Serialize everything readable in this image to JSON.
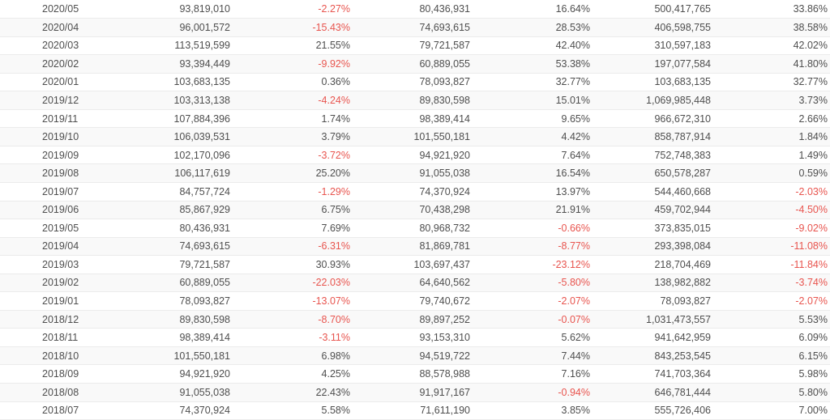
{
  "colors": {
    "negative_value": "#e8544e",
    "text": "#4e4e4e",
    "row_alt_background": "#f9f9f9",
    "row_border": "#ebebeb"
  },
  "table": {
    "rows": [
      [
        "2020/05",
        "93,819,010",
        "-2.27%",
        "80,436,931",
        "16.64%",
        "500,417,765",
        "33.86%"
      ],
      [
        "2020/04",
        "96,001,572",
        "-15.43%",
        "74,693,615",
        "28.53%",
        "406,598,755",
        "38.58%"
      ],
      [
        "2020/03",
        "113,519,599",
        "21.55%",
        "79,721,587",
        "42.40%",
        "310,597,183",
        "42.02%"
      ],
      [
        "2020/02",
        "93,394,449",
        "-9.92%",
        "60,889,055",
        "53.38%",
        "197,077,584",
        "41.80%"
      ],
      [
        "2020/01",
        "103,683,135",
        "0.36%",
        "78,093,827",
        "32.77%",
        "103,683,135",
        "32.77%"
      ],
      [
        "2019/12",
        "103,313,138",
        "-4.24%",
        "89,830,598",
        "15.01%",
        "1,069,985,448",
        "3.73%"
      ],
      [
        "2019/11",
        "107,884,396",
        "1.74%",
        "98,389,414",
        "9.65%",
        "966,672,310",
        "2.66%"
      ],
      [
        "2019/10",
        "106,039,531",
        "3.79%",
        "101,550,181",
        "4.42%",
        "858,787,914",
        "1.84%"
      ],
      [
        "2019/09",
        "102,170,096",
        "-3.72%",
        "94,921,920",
        "7.64%",
        "752,748,383",
        "1.49%"
      ],
      [
        "2019/08",
        "106,117,619",
        "25.20%",
        "91,055,038",
        "16.54%",
        "650,578,287",
        "0.59%"
      ],
      [
        "2019/07",
        "84,757,724",
        "-1.29%",
        "74,370,924",
        "13.97%",
        "544,460,668",
        "-2.03%"
      ],
      [
        "2019/06",
        "85,867,929",
        "6.75%",
        "70,438,298",
        "21.91%",
        "459,702,944",
        "-4.50%"
      ],
      [
        "2019/05",
        "80,436,931",
        "7.69%",
        "80,968,732",
        "-0.66%",
        "373,835,015",
        "-9.02%"
      ],
      [
        "2019/04",
        "74,693,615",
        "-6.31%",
        "81,869,781",
        "-8.77%",
        "293,398,084",
        "-11.08%"
      ],
      [
        "2019/03",
        "79,721,587",
        "30.93%",
        "103,697,437",
        "-23.12%",
        "218,704,469",
        "-11.84%"
      ],
      [
        "2019/02",
        "60,889,055",
        "-22.03%",
        "64,640,562",
        "-5.80%",
        "138,982,882",
        "-3.74%"
      ],
      [
        "2019/01",
        "78,093,827",
        "-13.07%",
        "79,740,672",
        "-2.07%",
        "78,093,827",
        "-2.07%"
      ],
      [
        "2018/12",
        "89,830,598",
        "-8.70%",
        "89,897,252",
        "-0.07%",
        "1,031,473,557",
        "5.53%"
      ],
      [
        "2018/11",
        "98,389,414",
        "-3.11%",
        "93,153,310",
        "5.62%",
        "941,642,959",
        "6.09%"
      ],
      [
        "2018/10",
        "101,550,181",
        "6.98%",
        "94,519,722",
        "7.44%",
        "843,253,545",
        "6.15%"
      ],
      [
        "2018/09",
        "94,921,920",
        "4.25%",
        "88,578,988",
        "7.16%",
        "741,703,364",
        "5.98%"
      ],
      [
        "2018/08",
        "91,055,038",
        "22.43%",
        "91,917,167",
        "-0.94%",
        "646,781,444",
        "5.80%"
      ],
      [
        "2018/07",
        "74,370,924",
        "5.58%",
        "71,611,190",
        "3.85%",
        "555,726,406",
        "7.00%"
      ]
    ]
  }
}
